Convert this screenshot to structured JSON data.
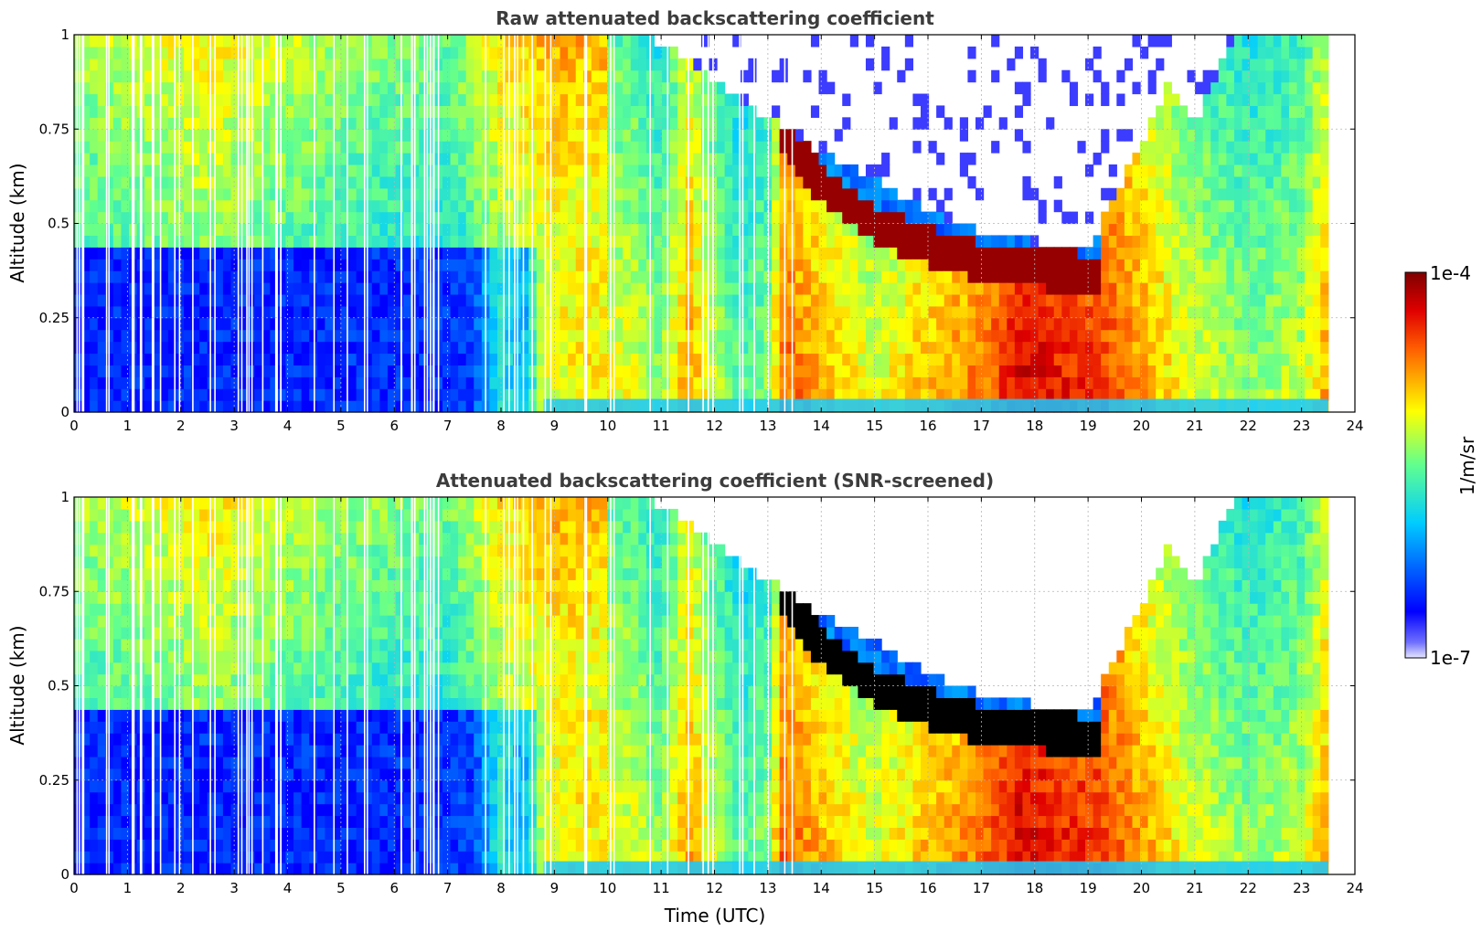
{
  "chart_data": [
    {
      "type": "heatmap",
      "title": "Raw attenuated backscattering coefficient",
      "xlabel": "",
      "ylabel": "Altitude (km)",
      "xlim": [
        0,
        24
      ],
      "ylim": [
        0,
        1
      ],
      "xticks": [
        "0",
        "1",
        "2",
        "3",
        "4",
        "5",
        "6",
        "7",
        "8",
        "9",
        "10",
        "11",
        "12",
        "13",
        "14",
        "15",
        "16",
        "17",
        "18",
        "19",
        "20",
        "21",
        "22",
        "23",
        "24"
      ],
      "yticks": [
        "0",
        "0.25",
        "0.5",
        "0.75",
        "1"
      ],
      "ytick_values": [
        0,
        0.25,
        0.5,
        0.75,
        1
      ],
      "grid": true,
      "data_end_time": 23.5,
      "screened": false,
      "cloud_base_km": [
        [
          13.2,
          0.76
        ],
        [
          14,
          0.6
        ],
        [
          15,
          0.5
        ],
        [
          16,
          0.44
        ],
        [
          17,
          0.4
        ],
        [
          18,
          0.38
        ],
        [
          19,
          0.37
        ],
        [
          19.2,
          0.36
        ]
      ],
      "clear_sky_top_km": [
        [
          9.8,
          1
        ],
        [
          11,
          0.95
        ],
        [
          12,
          0.85
        ],
        [
          13,
          0.75
        ],
        [
          14,
          0.66
        ],
        [
          15,
          0.59
        ],
        [
          16,
          0.5
        ],
        [
          17,
          0.45
        ],
        [
          18,
          0.42
        ],
        [
          19,
          0.4
        ],
        [
          19.5,
          0.55
        ],
        [
          20,
          0.68
        ],
        [
          20.5,
          0.85
        ],
        [
          21,
          0.72
        ],
        [
          21.5,
          0.9
        ],
        [
          22,
          1
        ]
      ]
    },
    {
      "type": "heatmap",
      "title": "Attenuated backscattering coefficient (SNR-screened)",
      "xlabel": "Time (UTC)",
      "ylabel": "Altitude (km)",
      "xlim": [
        0,
        24
      ],
      "ylim": [
        0,
        1
      ],
      "xticks": [
        "0",
        "1",
        "2",
        "3",
        "4",
        "5",
        "6",
        "7",
        "8",
        "9",
        "10",
        "11",
        "12",
        "13",
        "14",
        "15",
        "16",
        "17",
        "18",
        "19",
        "20",
        "21",
        "22",
        "23",
        "24"
      ],
      "yticks": [
        "0",
        "0.25",
        "0.5",
        "0.75",
        "1"
      ],
      "ytick_values": [
        0,
        0.25,
        0.5,
        0.75,
        1
      ],
      "grid": true,
      "data_end_time": 23.5,
      "screened": true,
      "cloud_base_km": [
        [
          13.2,
          0.76
        ],
        [
          14,
          0.6
        ],
        [
          15,
          0.5
        ],
        [
          16,
          0.44
        ],
        [
          17,
          0.4
        ],
        [
          18,
          0.38
        ],
        [
          19,
          0.37
        ],
        [
          19.2,
          0.36
        ]
      ],
      "clear_sky_top_km": [
        [
          9.8,
          1
        ],
        [
          11,
          0.95
        ],
        [
          12,
          0.85
        ],
        [
          13,
          0.75
        ],
        [
          14,
          0.66
        ],
        [
          15,
          0.59
        ],
        [
          16,
          0.5
        ],
        [
          17,
          0.45
        ],
        [
          18,
          0.42
        ],
        [
          19,
          0.4
        ],
        [
          19.5,
          0.55
        ],
        [
          20,
          0.68
        ],
        [
          20.5,
          0.85
        ],
        [
          21,
          0.72
        ],
        [
          21.5,
          0.9
        ],
        [
          22,
          1
        ]
      ]
    }
  ],
  "colorbar": {
    "max_label": "1e-4",
    "min_label": "1e-7",
    "label": "1/m/sr",
    "colormap": "jet",
    "low_end_color": "#e8e8ff",
    "high_end_color": "#7f0000"
  }
}
